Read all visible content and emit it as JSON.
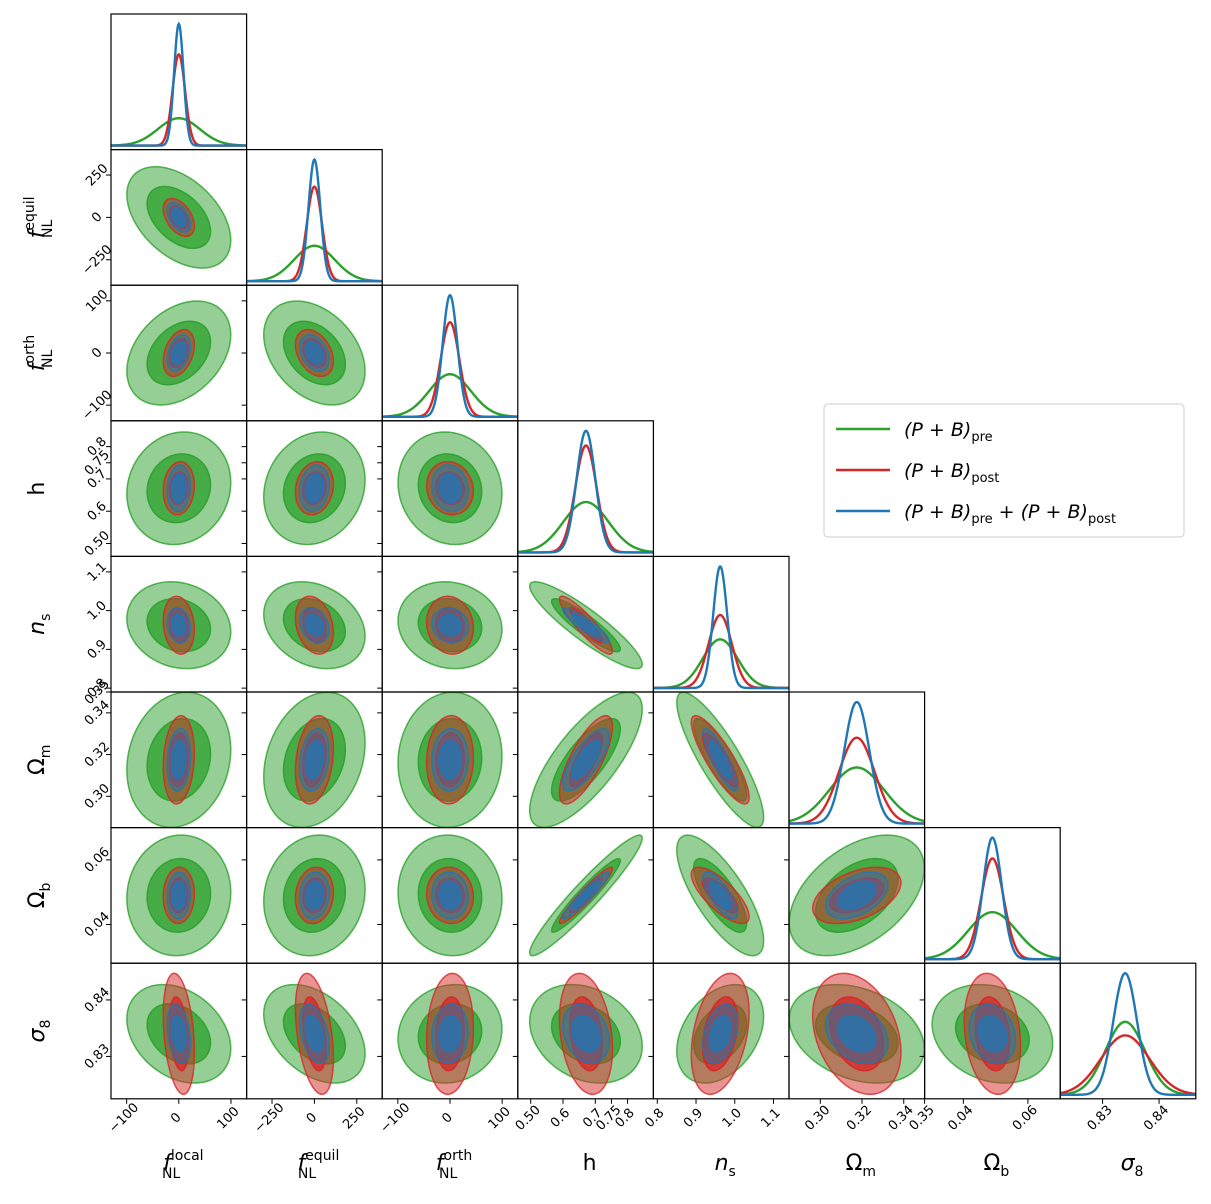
{
  "chart_data": {
    "type": "corner",
    "title": "",
    "parameters": [
      {
        "id": "fnl_local",
        "label": "f",
        "label_sup": "local",
        "label_sub": "NL",
        "italic": true,
        "ticks": [
          -100,
          0,
          100
        ],
        "tick_labels": [
          "−100",
          "0",
          "100"
        ],
        "range": [
          -130,
          130
        ],
        "fiducial": 0
      },
      {
        "id": "fnl_equil",
        "label": "f",
        "label_sup": "equil",
        "label_sub": "NL",
        "italic": true,
        "ticks": [
          -250,
          0,
          250
        ],
        "tick_labels": [
          "−250",
          "0",
          "250"
        ],
        "range": [
          -400,
          400
        ],
        "fiducial": 0
      },
      {
        "id": "fnl_orth",
        "label": "f",
        "label_sup": "orth",
        "label_sub": "NL",
        "italic": true,
        "ticks": [
          -100,
          0,
          100
        ],
        "tick_labels": [
          "−100",
          "0",
          "100"
        ],
        "range": [
          -130,
          130
        ],
        "fiducial": 0
      },
      {
        "id": "h",
        "label": "h",
        "label_sup": "",
        "label_sub": "",
        "italic": false,
        "ticks": [
          0.5,
          0.6,
          0.7,
          0.75,
          0.8
        ],
        "tick_labels": [
          "0.50",
          "0.6",
          "0.7",
          "0.75",
          "0.8"
        ],
        "range": [
          0.46,
          0.88
        ],
        "fiducial": 0.6711
      },
      {
        "id": "ns",
        "label": "n",
        "label_sup": "",
        "label_sub": "s",
        "italic": true,
        "ticks": [
          0.8,
          0.9,
          1.0,
          1.1
        ],
        "tick_labels": [
          "0.8",
          "0.9",
          "1.0",
          "1.1"
        ],
        "range": [
          0.79,
          1.14
        ],
        "fiducial": 0.9624
      },
      {
        "id": "omega_m",
        "label": "Ω",
        "label_sup": "",
        "label_sub": "m",
        "italic": false,
        "ticks": [
          0.3,
          0.32,
          0.34,
          0.35
        ],
        "tick_labels": [
          "0.30",
          "0.32",
          "0.34",
          "0.35"
        ],
        "range": [
          0.285,
          0.35
        ],
        "fiducial": 0.3175
      },
      {
        "id": "omega_b",
        "label": "Ω",
        "label_sup": "",
        "label_sub": "b",
        "italic": false,
        "ticks": [
          0.04,
          0.06
        ],
        "tick_labels": [
          "0.04",
          "0.06"
        ],
        "range": [
          0.028,
          0.07
        ],
        "fiducial": 0.049
      },
      {
        "id": "sigma8",
        "label": "σ",
        "label_sup": "",
        "label_sub": "8",
        "italic": true,
        "ticks": [
          0.83,
          0.84
        ],
        "tick_labels": [
          "0.83",
          "0.84"
        ],
        "range": [
          0.8225,
          0.8465
        ],
        "fiducial": 0.834
      }
    ],
    "series": [
      {
        "name": "(P+B)_pre",
        "legend_main": "(P + B)",
        "legend_sub": "pre",
        "color": "#2ca02c",
        "sigma": [
          40,
          120,
          40,
          0.07,
          0.045,
          0.013,
          0.0075,
          0.0035
        ]
      },
      {
        "name": "(P+B)_post",
        "legend_main": "(P + B)",
        "legend_sub": "post",
        "color": "#d62728",
        "sigma": [
          12,
          45,
          18,
          0.033,
          0.03,
          0.0085,
          0.0035,
          0.0043
        ]
      },
      {
        "name": "(P+B)_pre + (P+B)_post",
        "legend_main": "(P + B)",
        "legend_sub": "pre",
        "legend_main2": " + (P + B)",
        "legend_sub2": "post",
        "color": "#1f77b4",
        "sigma": [
          9,
          35,
          14,
          0.029,
          0.018,
          0.006,
          0.0029,
          0.0021
        ]
      }
    ],
    "correlations": [
      {
        "i": 1,
        "j": 0,
        "rho": -0.45
      },
      {
        "i": 2,
        "j": 0,
        "rho": 0.35
      },
      {
        "i": 2,
        "j": 1,
        "rho": -0.35
      },
      {
        "i": 3,
        "j": 0,
        "rho": 0.1
      },
      {
        "i": 3,
        "j": 1,
        "rho": 0.15
      },
      {
        "i": 3,
        "j": 2,
        "rho": -0.1
      },
      {
        "i": 4,
        "j": 0,
        "rho": -0.15
      },
      {
        "i": 4,
        "j": 1,
        "rho": -0.25
      },
      {
        "i": 4,
        "j": 2,
        "rho": -0.1
      },
      {
        "i": 4,
        "j": 3,
        "rho": -0.9
      },
      {
        "i": 5,
        "j": 0,
        "rho": 0.15
      },
      {
        "i": 5,
        "j": 1,
        "rho": 0.25
      },
      {
        "i": 5,
        "j": 2,
        "rho": 0.05
      },
      {
        "i": 5,
        "j": 3,
        "rho": 0.75
      },
      {
        "i": 5,
        "j": 4,
        "rho": -0.85
      },
      {
        "i": 6,
        "j": 0,
        "rho": 0.05
      },
      {
        "i": 6,
        "j": 1,
        "rho": 0.1
      },
      {
        "i": 6,
        "j": 2,
        "rho": -0.05
      },
      {
        "i": 6,
        "j": 3,
        "rho": 0.95
      },
      {
        "i": 6,
        "j": 4,
        "rho": -0.75
      },
      {
        "i": 6,
        "j": 5,
        "rho": 0.45
      },
      {
        "i": 7,
        "j": 0,
        "rho": -0.3
      },
      {
        "i": 7,
        "j": 1,
        "rho": -0.4
      },
      {
        "i": 7,
        "j": 2,
        "rho": 0.1
      },
      {
        "i": 7,
        "j": 3,
        "rho": -0.25
      },
      {
        "i": 7,
        "j": 4,
        "rho": 0.35
      },
      {
        "i": 7,
        "j": 5,
        "rho": -0.3
      },
      {
        "i": 7,
        "j": 6,
        "rho": -0.2
      }
    ],
    "contour_levels": [
      "1-sigma",
      "2-sigma"
    ],
    "legend_position": "right, mid-height"
  }
}
